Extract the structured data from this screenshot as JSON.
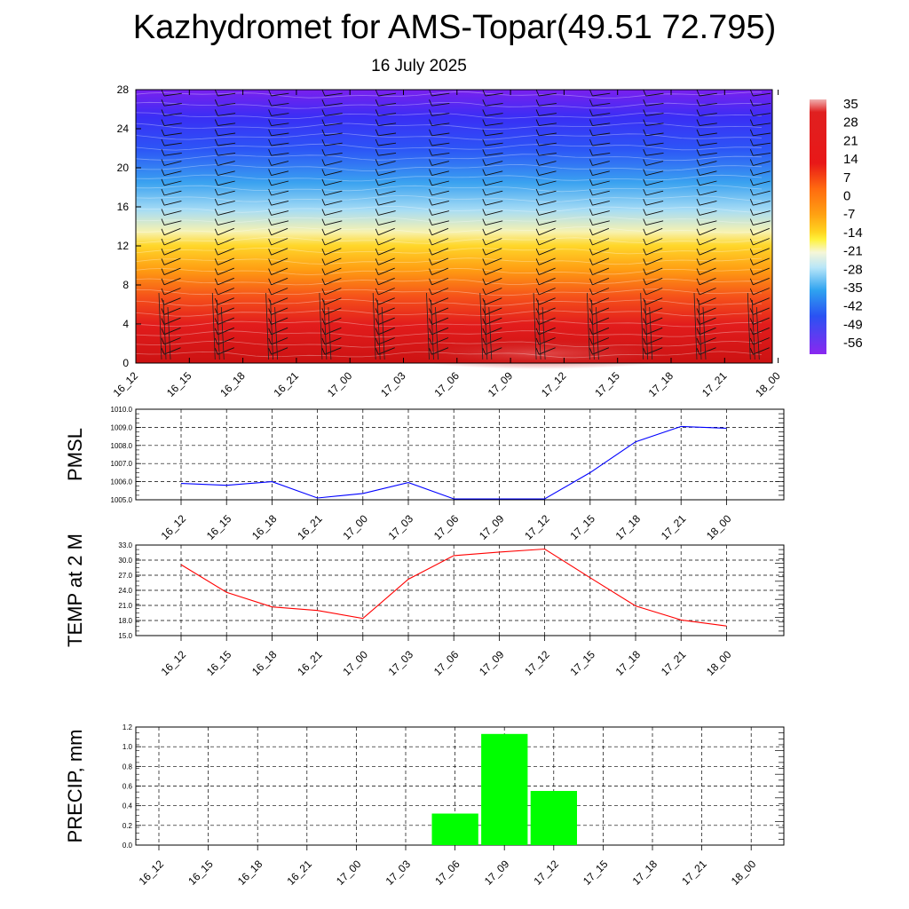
{
  "header": {
    "title": "Kazhydromet for AMS-Topar(49.51 72.795)",
    "subtitle": "16 July 2025"
  },
  "time_labels": [
    "16_12",
    "16_15",
    "16_18",
    "16_21",
    "17_00",
    "17_03",
    "17_06",
    "17_09",
    "17_12",
    "17_15",
    "17_18",
    "17_21",
    "18_00"
  ],
  "colors": {
    "pmsl_line": "#0000ff",
    "temp_line": "#ff0000",
    "precip_bar": "#00ff00"
  },
  "chart_data": [
    {
      "type": "heatmap",
      "title": "",
      "xlabel": "",
      "ylabel": "",
      "x": [
        "16_12",
        "16_15",
        "16_18",
        "16_21",
        "17_00",
        "17_03",
        "17_06",
        "17_09",
        "17_12",
        "17_15",
        "17_18",
        "17_21",
        "18_00"
      ],
      "ylim": [
        0,
        28
      ],
      "yticks": [
        0,
        4,
        8,
        12,
        16,
        20,
        24,
        28
      ],
      "colorbar_labels": [
        "35",
        "28",
        "21",
        "14",
        "7",
        "0",
        "-7",
        "-14",
        "-21",
        "-28",
        "-35",
        "-42",
        "-49",
        "-56"
      ],
      "colorbar_range": [
        -60,
        38
      ],
      "wind_barbs": true
    },
    {
      "type": "line",
      "ylabel": "PMSL",
      "x": [
        "16_12",
        "16_15",
        "16_18",
        "16_21",
        "17_00",
        "17_03",
        "17_06",
        "17_09",
        "17_12",
        "17_15",
        "17_18",
        "17_21",
        "18_00"
      ],
      "ylim": [
        1005.0,
        1010.0
      ],
      "ytick_labels": [
        "1005.0",
        "1006.0",
        "1007.0",
        "1008.0",
        "1009.0",
        "1010.0"
      ],
      "series": [
        {
          "values": [
            1005.9,
            1005.8,
            1006.0,
            1005.1,
            1005.35,
            1005.95,
            1005.05,
            1005.05,
            1005.05,
            1006.5,
            1008.2,
            1009.05,
            1008.95
          ]
        }
      ],
      "grid": true
    },
    {
      "type": "line",
      "ylabel": "TEMP at 2 M",
      "x": [
        "16_12",
        "16_15",
        "16_18",
        "16_21",
        "17_00",
        "17_03",
        "17_06",
        "17_09",
        "17_12",
        "17_15",
        "17_18",
        "17_21",
        "18_00"
      ],
      "ylim": [
        15.0,
        33.0
      ],
      "ytick_labels": [
        "15.0",
        "18.0",
        "21.0",
        "24.0",
        "27.0",
        "30.0",
        "33.0"
      ],
      "series": [
        {
          "values": [
            29.1,
            23.6,
            20.7,
            20.0,
            18.4,
            26.2,
            30.9,
            31.6,
            32.2,
            26.5,
            20.9,
            18.1,
            16.9
          ]
        }
      ],
      "grid": true
    },
    {
      "type": "bar",
      "ylabel": "PRECIP, mm",
      "x": [
        "16_12",
        "16_15",
        "16_18",
        "16_21",
        "17_00",
        "17_03",
        "17_06",
        "17_09",
        "17_12",
        "17_15",
        "17_18",
        "17_21",
        "18_00"
      ],
      "ylim": [
        0.0,
        1.2
      ],
      "ytick_labels": [
        "0.0",
        "0.2",
        "0.4",
        "0.6",
        "0.8",
        "1.0",
        "1.2"
      ],
      "series": [
        {
          "values": [
            0,
            0,
            0,
            0,
            0,
            0,
            0.32,
            1.13,
            0.55,
            0,
            0,
            0,
            0
          ]
        }
      ],
      "grid": true
    }
  ]
}
